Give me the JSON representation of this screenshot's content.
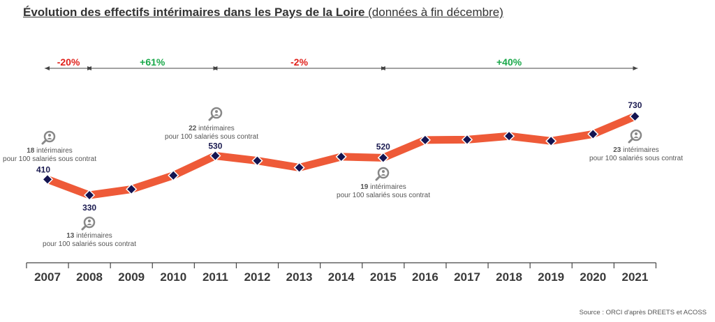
{
  "title": "Évolution des effectifs intérimaires dans les Pays de la Loire",
  "subtitle": "(données à fin décembre)",
  "source": "Source : ORCI d'après DREETS et ACOSS",
  "colors": {
    "line": "#ee5a38",
    "marker": "#141451",
    "axis": "#444444",
    "neg": "#e0201a",
    "pos": "#1aa84a",
    "annot": "#555555",
    "icon": "#888888"
  },
  "chart_data": {
    "type": "line",
    "title": "Évolution des effectifs intérimaires dans les Pays de la Loire",
    "x": [
      "2007",
      "2008",
      "2009",
      "2010",
      "2011",
      "2012",
      "2013",
      "2014",
      "2015",
      "2016",
      "2017",
      "2018",
      "2019",
      "2020",
      "2021"
    ],
    "series": [
      {
        "values": [
          410,
          330,
          360,
          430,
          530,
          505,
          470,
          525,
          520,
          610,
          612,
          630,
          605,
          640,
          730
        ]
      }
    ],
    "data_labels": [
      {
        "x": "2007",
        "text": "410"
      },
      {
        "x": "2008",
        "text": "330"
      },
      {
        "x": "2011",
        "text": "530"
      },
      {
        "x": "2015",
        "text": "520"
      },
      {
        "x": "2021",
        "text": "730"
      }
    ],
    "periods": [
      {
        "from": "2007",
        "to": "2008",
        "label": "-20%",
        "sign": "neg"
      },
      {
        "from": "2008",
        "to": "2011",
        "label": "+61%",
        "sign": "pos"
      },
      {
        "from": "2011",
        "to": "2015",
        "label": "-2%",
        "sign": "neg"
      },
      {
        "from": "2015",
        "to": "2021",
        "label": "+40%",
        "sign": "pos"
      }
    ],
    "annotations": [
      {
        "x": "2007",
        "line1": "18 intérimaires",
        "line2": "pour 100 salariés sous contrat",
        "icon": "magnifier-person-icon"
      },
      {
        "x": "2008",
        "line1": "13 intérimaires",
        "line2": "pour 100 salariés sous contrat",
        "icon": "magnifier-person-icon"
      },
      {
        "x": "2011",
        "line1": "22 intérimaires",
        "line2": "pour 100 salariés sous contrat",
        "icon": "magnifier-person-icon"
      },
      {
        "x": "2015",
        "line1": "19 intérimaires",
        "line2": "pour 100 salariés sous contrat",
        "icon": "magnifier-person-icon"
      },
      {
        "x": "2021",
        "line1": "23 intérimaires",
        "line2": "pour 100 salariés sous contrat",
        "icon": "magnifier-person-icon"
      }
    ],
    "ylim": [
      0,
      800
    ],
    "grid": false
  }
}
